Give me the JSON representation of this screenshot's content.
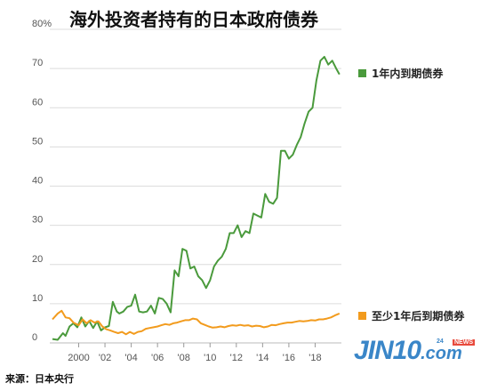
{
  "title": "海外投资者持有的日本政府债券",
  "source": "来源：日本央行",
  "watermark": {
    "main": "JIN10",
    "sub": ".com",
    "badge": "NEWS",
    "small": "24"
  },
  "colors": {
    "short": "#4a9a3c",
    "long": "#f29b1d",
    "grid": "#dcdcdc"
  },
  "chart_data": {
    "type": "line",
    "title": "海外投资者持有的日本政府债券",
    "xlabel": "",
    "ylabel": "",
    "xlim": [
      1997.8,
      2020.0
    ],
    "ylim": [
      0,
      80
    ],
    "y_ticks": [
      0,
      10,
      20,
      30,
      40,
      50,
      60,
      70,
      80
    ],
    "y_tick_labels": [
      "0",
      "10",
      "20",
      "30",
      "40",
      "50",
      "60",
      "70",
      "80%"
    ],
    "x_ticks": [
      2000,
      2002,
      2004,
      2006,
      2008,
      2010,
      2012,
      2014,
      2016,
      2018
    ],
    "x_tick_labels": [
      "2000",
      "'02",
      "'04",
      "'06",
      "'08",
      "'10",
      "'12",
      "'14",
      "'16",
      "'18"
    ],
    "grid": true,
    "series": [
      {
        "name": "1年内到期债券",
        "color": "#4a9a3c",
        "x": [
          1998.0,
          1998.4,
          1998.8,
          1999.0,
          1999.3,
          1999.6,
          1999.9,
          2000.2,
          2000.5,
          2000.8,
          2001.1,
          2001.4,
          2001.7,
          2002.0,
          2002.3,
          2002.6,
          2002.9,
          2003.1,
          2003.4,
          2003.7,
          2004.0,
          2004.3,
          2004.6,
          2004.9,
          2005.2,
          2005.5,
          2005.8,
          2006.1,
          2006.4,
          2006.7,
          2007.0,
          2007.3,
          2007.6,
          2007.9,
          2008.2,
          2008.5,
          2008.8,
          2009.1,
          2009.4,
          2009.7,
          2010.0,
          2010.3,
          2010.6,
          2010.9,
          2011.2,
          2011.5,
          2011.8,
          2012.1,
          2012.4,
          2012.7,
          2013.0,
          2013.3,
          2013.6,
          2013.9,
          2014.2,
          2014.5,
          2014.8,
          2015.1,
          2015.4,
          2015.7,
          2016.0,
          2016.3,
          2016.6,
          2016.9,
          2017.2,
          2017.5,
          2017.8,
          2018.1,
          2018.4,
          2018.7,
          2019.0,
          2019.3,
          2019.6,
          2019.85
        ],
        "y": [
          1.0,
          0.8,
          2.5,
          1.8,
          4.2,
          5.0,
          4.0,
          6.5,
          4.2,
          5.6,
          3.8,
          5.5,
          3.2,
          4.0,
          4.3,
          10.5,
          8.0,
          7.5,
          8.0,
          9.2,
          9.5,
          12.3,
          8.0,
          7.8,
          8.0,
          9.5,
          7.5,
          11.5,
          11.2,
          10.0,
          7.8,
          18.5,
          17.0,
          24.0,
          23.5,
          19.0,
          19.5,
          17.0,
          16.0,
          14.0,
          16.0,
          19.5,
          21.0,
          22.0,
          24.0,
          28.0,
          28.0,
          30.0,
          27.0,
          28.5,
          28.0,
          33.0,
          32.5,
          32.0,
          38.0,
          36.0,
          35.5,
          37.0,
          49.0,
          49.0,
          47.0,
          48.0,
          50.5,
          52.5,
          56.0,
          59.0,
          60.0,
          67.0,
          72.0,
          73.0,
          71.0,
          72.0,
          70.0,
          68.5
        ]
      },
      {
        "name": "至少1年后到期债券",
        "color": "#f29b1d",
        "x": [
          1998.0,
          1998.4,
          1998.7,
          1999.0,
          1999.3,
          1999.6,
          2000.0,
          2000.3,
          2000.6,
          2000.9,
          2001.2,
          2001.5,
          2001.8,
          2002.1,
          2002.4,
          2002.7,
          2003.0,
          2003.3,
          2003.6,
          2003.9,
          2004.2,
          2004.5,
          2004.8,
          2005.1,
          2005.4,
          2005.7,
          2006.0,
          2006.3,
          2006.6,
          2006.9,
          2007.2,
          2007.5,
          2007.8,
          2008.1,
          2008.4,
          2008.7,
          2009.0,
          2009.3,
          2009.6,
          2009.9,
          2010.2,
          2010.5,
          2010.8,
          2011.1,
          2011.4,
          2011.7,
          2012.0,
          2012.3,
          2012.6,
          2012.9,
          2013.2,
          2013.5,
          2013.8,
          2014.1,
          2014.4,
          2014.7,
          2015.0,
          2015.3,
          2015.6,
          2015.9,
          2016.2,
          2016.5,
          2016.8,
          2017.1,
          2017.4,
          2017.7,
          2018.0,
          2018.3,
          2018.6,
          2018.9,
          2019.2,
          2019.5,
          2019.85
        ],
        "y": [
          6.0,
          7.5,
          8.2,
          6.5,
          6.3,
          5.2,
          4.5,
          6.0,
          5.0,
          5.8,
          5.2,
          5.5,
          4.2,
          3.5,
          3.2,
          2.8,
          2.5,
          2.8,
          2.2,
          2.8,
          2.3,
          2.8,
          3.0,
          3.6,
          3.8,
          4.0,
          4.2,
          4.5,
          4.8,
          4.6,
          5.0,
          5.2,
          5.5,
          5.8,
          5.8,
          6.2,
          6.0,
          5.0,
          4.6,
          4.2,
          3.9,
          4.0,
          4.2,
          4.0,
          4.3,
          4.5,
          4.4,
          4.6,
          4.4,
          4.5,
          4.2,
          4.4,
          4.3,
          4.0,
          4.2,
          4.6,
          4.5,
          4.8,
          5.0,
          5.2,
          5.2,
          5.4,
          5.6,
          5.5,
          5.6,
          5.8,
          5.7,
          6.0,
          6.0,
          6.2,
          6.5,
          7.0,
          7.5
        ]
      }
    ]
  }
}
